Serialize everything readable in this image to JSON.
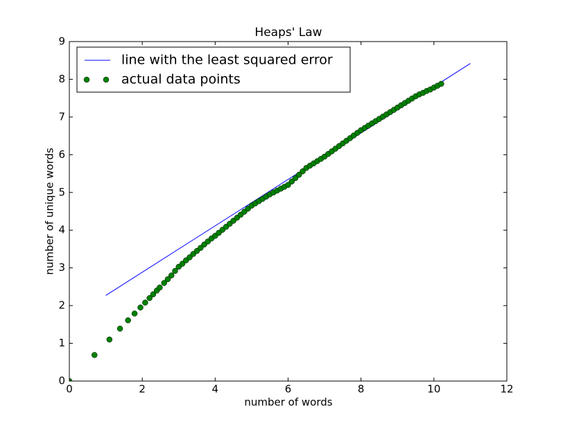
{
  "chart_data": {
    "type": "scatter",
    "title": "Heaps' Law",
    "x_label": "number of words",
    "y_label": "number of unique words",
    "xlim": [
      0,
      12
    ],
    "ylim": [
      0,
      9
    ],
    "xticks": [
      0,
      2,
      4,
      6,
      8,
      10,
      12
    ],
    "yticks": [
      0,
      1,
      2,
      3,
      4,
      5,
      6,
      7,
      8,
      9
    ],
    "grid": false,
    "legend": "upper left",
    "series": [
      {
        "name": "line with the least squared error",
        "type": "line",
        "color": "#0000ff",
        "x": [
          1,
          11
        ],
        "values": [
          2.27,
          8.42
        ]
      },
      {
        "name": "actual data points",
        "type": "scatter",
        "color": "#008000",
        "x": [
          0,
          0.69,
          1.1,
          1.39,
          1.61,
          1.79,
          1.95,
          2.08,
          2.2,
          2.3,
          2.4,
          2.48,
          2.6,
          2.7,
          2.8,
          2.9,
          3.0,
          3.1,
          3.2,
          3.3,
          3.4,
          3.5,
          3.6,
          3.7,
          3.8,
          3.9,
          4.0,
          4.1,
          4.2,
          4.3,
          4.4,
          4.5,
          4.6,
          4.7,
          4.8,
          4.9,
          5.0,
          5.1,
          5.2,
          5.3,
          5.4,
          5.5,
          5.6,
          5.7,
          5.8,
          5.9,
          6.0,
          6.1,
          6.2,
          6.3,
          6.4,
          6.5,
          6.6,
          6.7,
          6.8,
          6.9,
          7.0,
          7.1,
          7.2,
          7.3,
          7.4,
          7.5,
          7.6,
          7.7,
          7.8,
          7.9,
          8.0,
          8.1,
          8.2,
          8.3,
          8.4,
          8.5,
          8.6,
          8.7,
          8.8,
          8.9,
          9.0,
          9.1,
          9.2,
          9.3,
          9.4,
          9.5,
          9.6,
          9.7,
          9.8,
          9.9,
          10.0,
          10.1,
          10.2
        ],
        "values": [
          0,
          0.69,
          1.1,
          1.39,
          1.61,
          1.79,
          1.95,
          2.08,
          2.2,
          2.3,
          2.4,
          2.48,
          2.6,
          2.7,
          2.8,
          2.92,
          3.03,
          3.11,
          3.2,
          3.28,
          3.37,
          3.45,
          3.53,
          3.62,
          3.7,
          3.78,
          3.85,
          3.93,
          4.01,
          4.09,
          4.17,
          4.25,
          4.33,
          4.41,
          4.49,
          4.57,
          4.65,
          4.71,
          4.77,
          4.83,
          4.89,
          4.95,
          5.0,
          5.05,
          5.1,
          5.15,
          5.2,
          5.29,
          5.38,
          5.47,
          5.56,
          5.65,
          5.71,
          5.77,
          5.83,
          5.89,
          5.95,
          6.02,
          6.09,
          6.16,
          6.23,
          6.3,
          6.37,
          6.44,
          6.51,
          6.58,
          6.65,
          6.71,
          6.77,
          6.83,
          6.89,
          6.95,
          7.01,
          7.07,
          7.13,
          7.19,
          7.25,
          7.31,
          7.37,
          7.43,
          7.49,
          7.55,
          7.6,
          7.64,
          7.69,
          7.73,
          7.78,
          7.83,
          7.88
        ]
      }
    ]
  }
}
